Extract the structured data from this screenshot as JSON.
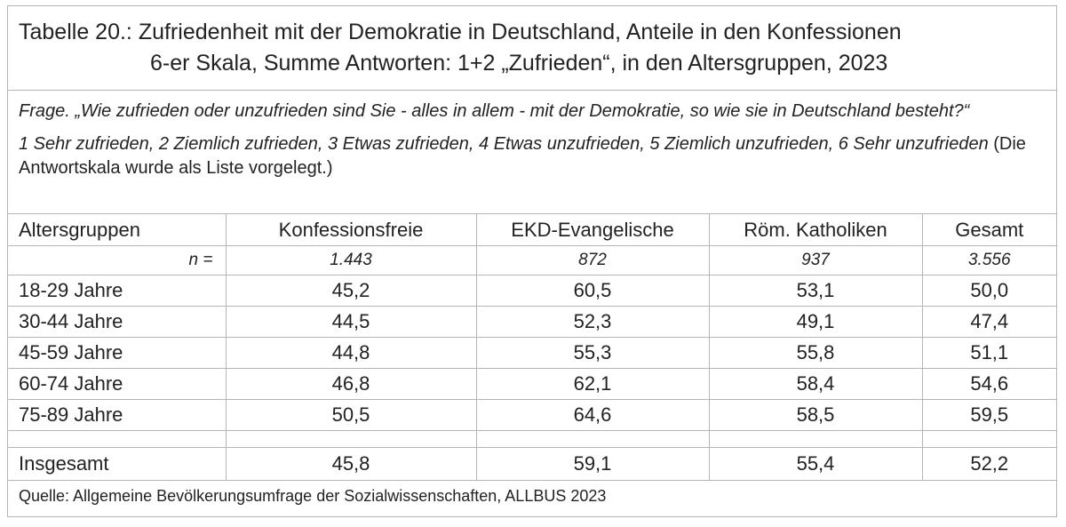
{
  "title": {
    "line1": "Tabelle 20.: Zufriedenheit mit der Demokratie in Deutschland, Anteile in den Konfessionen",
    "line2": "6-er Skala, Summe Antworten: 1+2 „Zufrieden“, in den Altersgruppen, 2023"
  },
  "question": {
    "text": "Frage. „Wie zufrieden oder unzufrieden sind Sie - alles in allem - mit der Demokratie, so wie sie in Deutschland besteht?“",
    "scale": "1 Sehr zufrieden, 2 Ziemlich zufrieden, 3 Etwas zufrieden, 4 Etwas unzufrieden, 5 Ziemlich unzufrieden, 6 Sehr unzufrieden",
    "scale_note": " (Die Antwortskala wurde als Liste vorgelegt.)"
  },
  "table": {
    "headers": [
      "Altersgruppen",
      "Konfessionsfreie",
      "EKD-Evangelische",
      "Röm. Katholiken",
      "Gesamt"
    ],
    "n_label": "n =",
    "n_values": [
      "1.443",
      "872",
      "937",
      "3.556"
    ],
    "rows": [
      [
        "18-29 Jahre",
        "45,2",
        "60,5",
        "53,1",
        "50,0"
      ],
      [
        "30-44 Jahre",
        "44,5",
        "52,3",
        "49,1",
        "47,4"
      ],
      [
        "45-59 Jahre",
        "44,8",
        "55,3",
        "55,8",
        "51,1"
      ],
      [
        "60-74 Jahre",
        "46,8",
        "62,1",
        "58,4",
        "54,6"
      ],
      [
        "75-89 Jahre",
        "50,5",
        "64,6",
        "58,5",
        "59,5"
      ]
    ],
    "total": [
      "Insgesamt",
      "45,8",
      "59,1",
      "55,4",
      "52,2"
    ]
  },
  "source": "Quelle: Allgemeine Bevölkerungsumfrage der Sozialwissenschaften, ALLBUS 2023"
}
